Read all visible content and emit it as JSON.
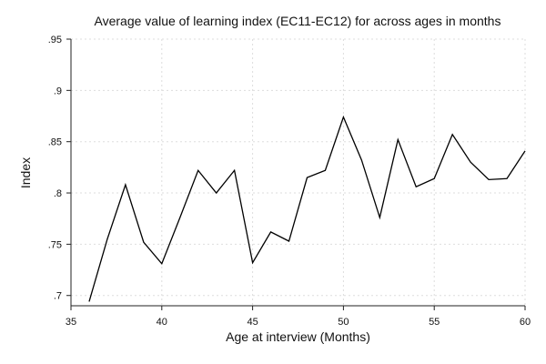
{
  "chart_data": {
    "type": "line",
    "title": "Average value of learning index (EC11-EC12) for across ages in months",
    "xlabel": "Age at interview (Months)",
    "ylabel": "Index",
    "xlim": [
      35,
      60
    ],
    "ylim": [
      0.69,
      0.95
    ],
    "x_ticks": [
      35,
      40,
      45,
      50,
      55,
      60
    ],
    "x_tick_labels": [
      "35",
      "40",
      "45",
      "50",
      "55",
      "60"
    ],
    "y_ticks": [
      0.7,
      0.75,
      0.8,
      0.85,
      0.9,
      0.95
    ],
    "y_tick_labels": [
      ".7",
      ".75",
      ".8",
      ".85",
      ".9",
      ".95"
    ],
    "grid": true,
    "series": [
      {
        "x": [
          36,
          37,
          38,
          39,
          40,
          41,
          42,
          43,
          44,
          45,
          46,
          47,
          48,
          49,
          50,
          51,
          52,
          53,
          54,
          55,
          56,
          57,
          58,
          59,
          60
        ],
        "values": [
          0.694,
          0.755,
          0.808,
          0.752,
          0.731,
          0.776,
          0.822,
          0.8,
          0.822,
          0.732,
          0.762,
          0.753,
          0.815,
          0.822,
          0.874,
          0.832,
          0.776,
          0.852,
          0.806,
          0.814,
          0.857,
          0.83,
          0.813,
          0.814,
          0.841
        ],
        "color": "#000000"
      }
    ]
  }
}
